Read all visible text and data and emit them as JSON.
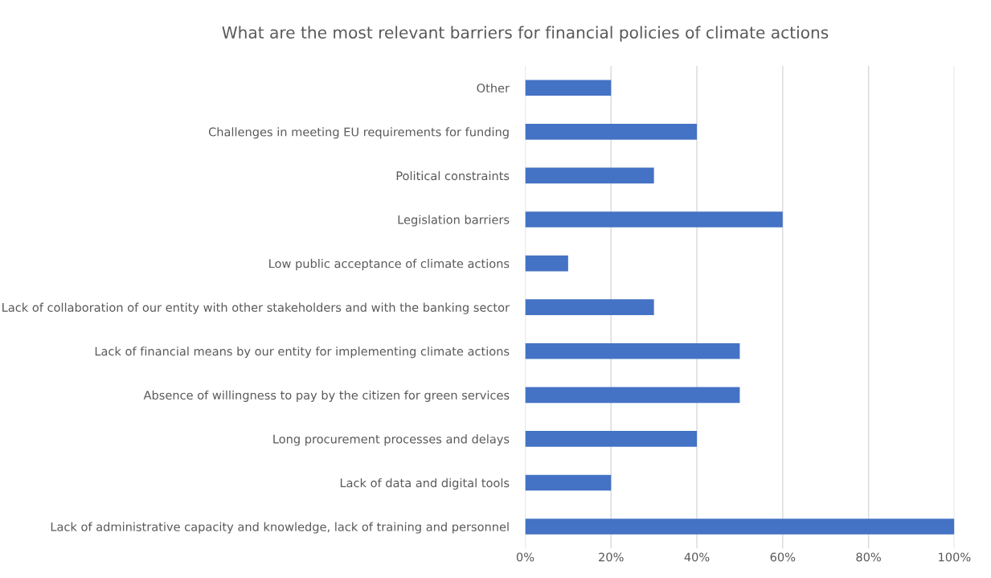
{
  "chart_data": {
    "type": "bar",
    "orientation": "horizontal",
    "title": "What are the most relevant barriers for financial policies of climate actions",
    "categories": [
      "Other",
      "Challenges in meeting EU requirements for funding",
      "Political constraints",
      "Legislation barriers",
      "Low public acceptance of climate actions",
      "Lack of collaboration of our entity with other stakeholders and with the banking sector",
      "Lack of financial means by our entity for implementing climate actions",
      "Absence of willingness to pay by the citizen for green services",
      "Long procurement processes and delays",
      "Lack of data and digital tools",
      "Lack of administrative capacity and knowledge, lack of training and personnel"
    ],
    "values": [
      20,
      40,
      30,
      60,
      10,
      30,
      50,
      50,
      40,
      20,
      100
    ],
    "color": "#4472c4",
    "xlim": [
      0,
      100
    ],
    "xticks": [
      {
        "value": 0,
        "label": "0%"
      },
      {
        "value": 20,
        "label": "20%"
      },
      {
        "value": 40,
        "label": "40%"
      },
      {
        "value": 60,
        "label": "60%"
      },
      {
        "value": 80,
        "label": "80%"
      },
      {
        "value": 100,
        "label": "100%"
      }
    ],
    "grid": "x"
  }
}
